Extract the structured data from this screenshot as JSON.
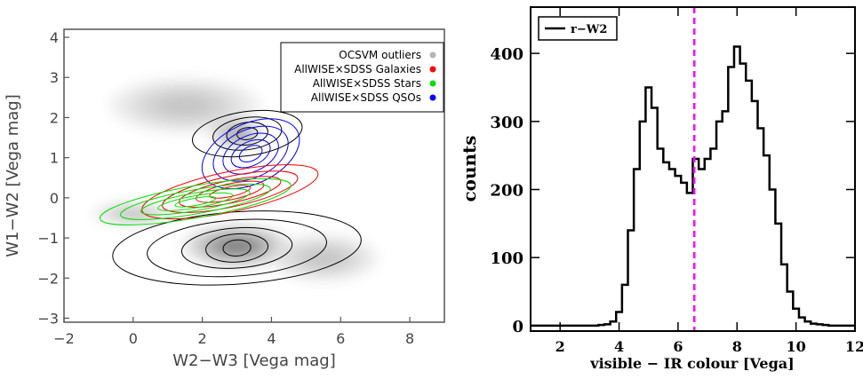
{
  "chart_data": [
    {
      "type": "scatter",
      "xlabel": "W2−W3 [Vega mag]",
      "ylabel": "W1−W2 [Vega mag]",
      "xlim": [
        -2,
        9
      ],
      "ylim": [
        -3.1,
        4.2
      ],
      "x_ticks": [
        "−2",
        "0",
        "2",
        "4",
        "6",
        "8"
      ],
      "y_ticks": [
        "−3",
        "−2",
        "−1",
        "0",
        "1",
        "2",
        "3",
        "4"
      ],
      "legend_position": "top-right",
      "legend": [
        {
          "label": "OCSVM outliers",
          "color": "#b4b4b4"
        },
        {
          "label": "AllWISE×SDSS Galaxies",
          "color": "#ff0000"
        },
        {
          "label": "AllWISE×SDSS Stars",
          "color": "#00dd00"
        },
        {
          "label": "AllWISE×SDSS QSOs",
          "color": "#0000ff"
        }
      ],
      "density_blobs": [
        {
          "x": 3.0,
          "y": -1.2,
          "sx": 1.6,
          "sy": 0.55,
          "w": 1.0
        },
        {
          "x": 3.0,
          "y": 1.6,
          "sx": 0.8,
          "sy": 0.4,
          "w": 0.7
        },
        {
          "x": 1.5,
          "y": 2.3,
          "sx": 2.2,
          "sy": 0.7,
          "w": 0.35
        },
        {
          "x": 0.0,
          "y": -0.4,
          "sx": 1.2,
          "sy": 0.3,
          "w": 0.4
        },
        {
          "x": 5.5,
          "y": -1.5,
          "sx": 1.6,
          "sy": 0.6,
          "w": 0.35
        }
      ],
      "contours": [
        {
          "color": "#000000",
          "cx": 3.0,
          "cy": -1.25,
          "rx": [
            3.6,
            2.6,
            1.6,
            0.9,
            0.4
          ],
          "ry": [
            0.9,
            0.7,
            0.5,
            0.35,
            0.2
          ],
          "angle": -4
        },
        {
          "color": "#000000",
          "cx": 3.3,
          "cy": 1.6,
          "rx": [
            1.6,
            1.0,
            0.6,
            0.3
          ],
          "ry": [
            0.55,
            0.4,
            0.28,
            0.15
          ],
          "angle": -8
        },
        {
          "color": "#0000ff",
          "cx": 3.4,
          "cy": 1.1,
          "rx": [
            1.5,
            1.15,
            0.85,
            0.6,
            0.35
          ],
          "ry": [
            0.75,
            0.6,
            0.45,
            0.3,
            0.18
          ],
          "angle": -25
        },
        {
          "color": "#ff0000",
          "cx": 2.8,
          "cy": 0.15,
          "rx": [
            2.6,
            2.0,
            1.5,
            1.0,
            0.6
          ],
          "ry": [
            0.5,
            0.38,
            0.28,
            0.2,
            0.12
          ],
          "angle": -12
        },
        {
          "color": "#00dd00",
          "cx": 1.8,
          "cy": -0.1,
          "rx": [
            2.8,
            2.2,
            1.6,
            1.1,
            0.6
          ],
          "ry": [
            0.4,
            0.3,
            0.22,
            0.15,
            0.09
          ],
          "angle": -10
        }
      ]
    },
    {
      "type": "step",
      "xlabel": "visible − IR colour [Vega]",
      "ylabel": "counts",
      "xlim": [
        1,
        12
      ],
      "ylim": [
        -8,
        468
      ],
      "x_ticks": [
        "2",
        "4",
        "6",
        "8",
        "10",
        "12"
      ],
      "y_ticks": [
        "0",
        "100",
        "200",
        "300",
        "400"
      ],
      "legend_position": "top-left",
      "series": [
        {
          "name": "r−W2",
          "color": "#000000",
          "bin_width": 0.2,
          "x": [
            3.2,
            3.4,
            3.6,
            3.8,
            4.0,
            4.2,
            4.4,
            4.6,
            4.8,
            5.0,
            5.2,
            5.4,
            5.6,
            5.8,
            6.0,
            6.2,
            6.4,
            6.6,
            6.8,
            7.0,
            7.2,
            7.4,
            7.6,
            7.8,
            8.0,
            8.2,
            8.4,
            8.6,
            8.8,
            9.0,
            9.2,
            9.4,
            9.6,
            9.8,
            10.0,
            10.2,
            10.4,
            10.6,
            10.8,
            11.0,
            11.2
          ],
          "values": [
            0,
            1,
            2,
            6,
            20,
            60,
            140,
            230,
            300,
            350,
            320,
            260,
            240,
            230,
            220,
            210,
            195,
            245,
            230,
            245,
            260,
            300,
            315,
            380,
            410,
            385,
            360,
            330,
            290,
            250,
            200,
            150,
            90,
            50,
            25,
            12,
            6,
            3,
            2,
            1,
            0
          ]
        }
      ],
      "reference_line": {
        "x": 6.55,
        "color": "#ff00ff",
        "style": "dashed"
      }
    }
  ]
}
